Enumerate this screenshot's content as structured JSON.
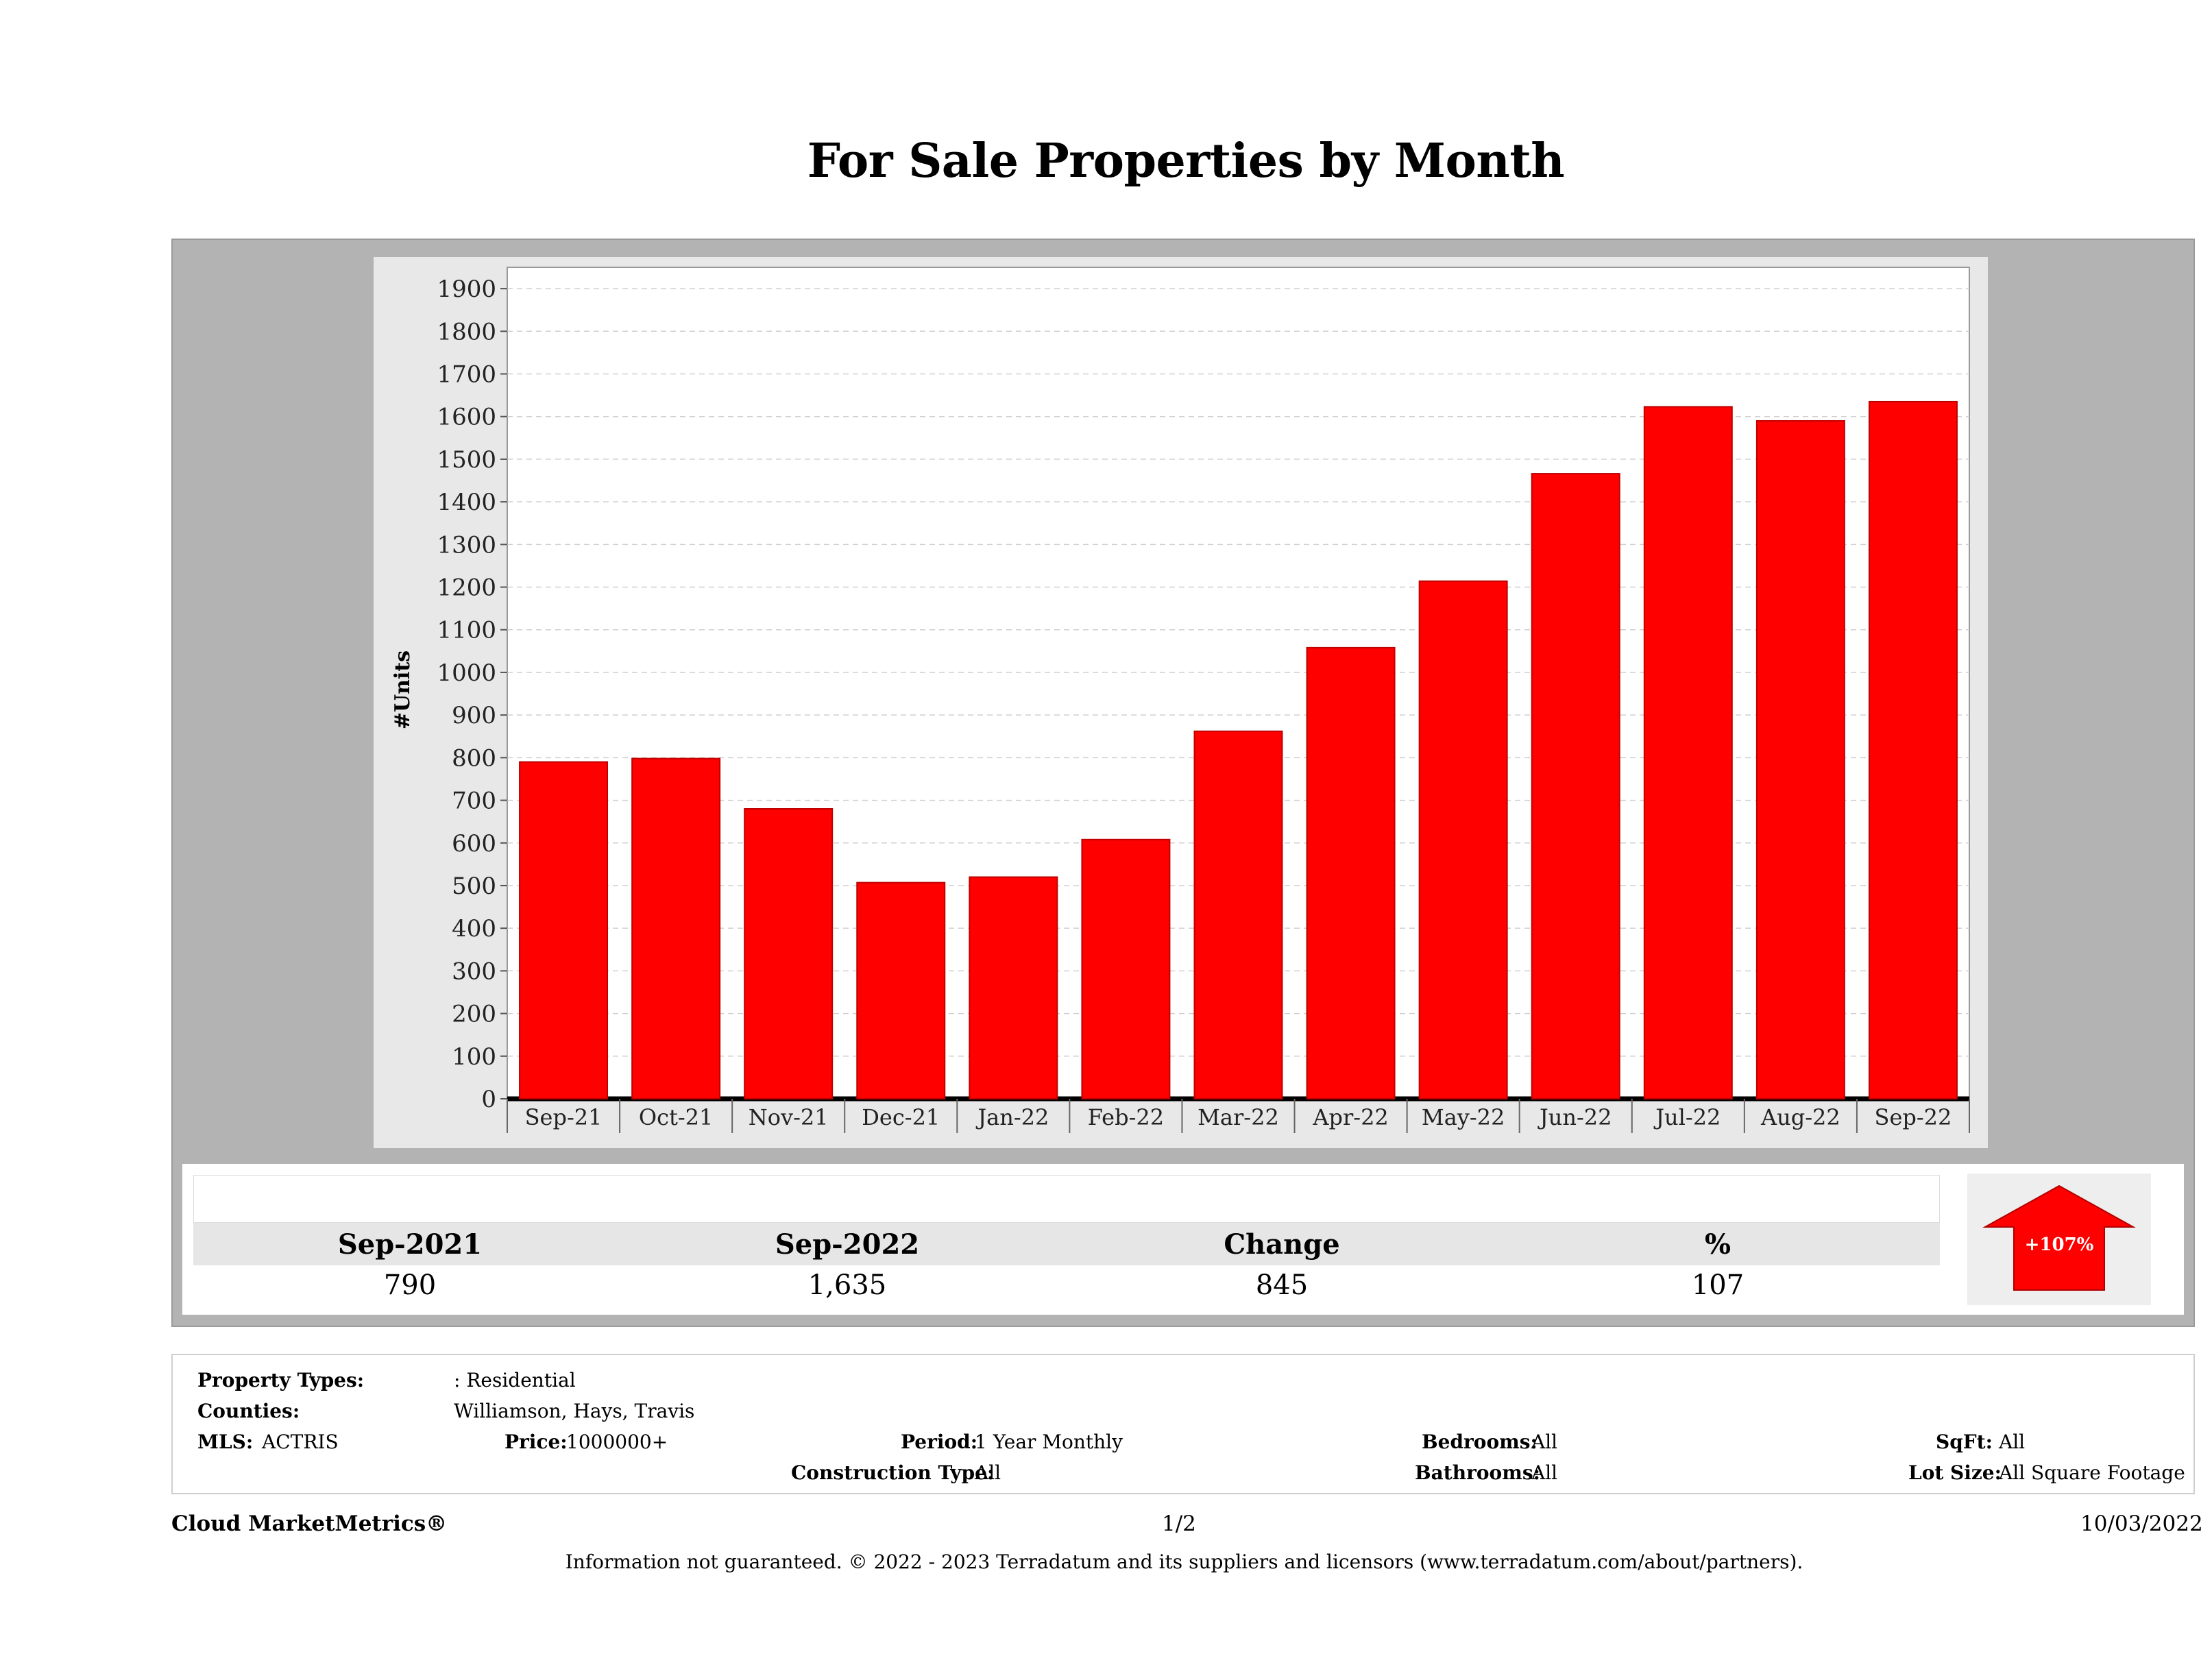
{
  "title": "For Sale Properties by Month",
  "chart_data": {
    "type": "bar",
    "ylabel": "#Units",
    "xlabel": "",
    "categories": [
      "Sep-21",
      "Oct-21",
      "Nov-21",
      "Dec-21",
      "Jan-22",
      "Feb-22",
      "Mar-22",
      "Apr-22",
      "May-22",
      "Jun-22",
      "Jul-22",
      "Aug-22",
      "Sep-22"
    ],
    "values": [
      790,
      798,
      680,
      507,
      520,
      608,
      862,
      1058,
      1214,
      1466,
      1623,
      1590,
      1635
    ],
    "ylim": [
      0,
      1950
    ],
    "yticks": [
      0,
      100,
      200,
      300,
      400,
      500,
      600,
      700,
      800,
      900,
      1000,
      1100,
      1200,
      1300,
      1400,
      1500,
      1600,
      1700,
      1800,
      1900
    ],
    "bar_color": "#ff0000",
    "grid": true
  },
  "summary": {
    "headers": [
      "Sep-2021",
      "Sep-2022",
      "Change",
      "%"
    ],
    "values": [
      "790",
      "1,635",
      "845",
      "107"
    ],
    "badge_text": "+107%",
    "badge_icon": "up-arrow-icon",
    "badge_color": "#ff0000"
  },
  "info": {
    "property_types_label": "Property Types:",
    "property_types_value": ": Residential",
    "counties_label": "Counties:",
    "counties_value": "Williamson, Hays, Travis",
    "mls_label": "MLS:",
    "mls_value": "ACTRIS",
    "price_label": "Price:",
    "price_value": "1000000+",
    "period_label": "Period:",
    "period_value": "1 Year Monthly",
    "construction_label": "Construction Type:",
    "construction_value": "All",
    "bedrooms_label": "Bedrooms:",
    "bedrooms_value": "All",
    "bathrooms_label": "Bathrooms:",
    "bathrooms_value": "All",
    "sqft_label": "SqFt:",
    "sqft_value": "All",
    "lotsize_label": "Lot Size:",
    "lotsize_value": "All Square Footage"
  },
  "footer": {
    "brand": "Cloud MarketMetrics®",
    "page": "1/2",
    "date": "10/03/2022",
    "disclaimer": "Information not guaranteed. © 2022 - 2023 Terradatum and its suppliers and licensors (www.terradatum.com/about/partners)."
  }
}
